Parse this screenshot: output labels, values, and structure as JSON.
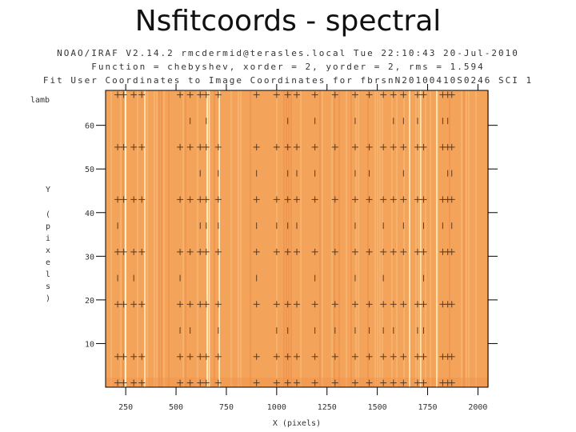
{
  "slide_title": "Nsfitcoords - spectral",
  "plot_header": [
    "NOAO/IRAF V2.14.2 rmcdermid@terasles.local  Tue 22:10:43 20-Jul-2010",
    "Function = chebyshev, xorder = 2, yorder = 2, rms = 1.594",
    "Fit User Coordinates to Image Coordinates for fbrsnN20100410S0246 SCI 1"
  ],
  "chart_data": {
    "type": "scatter",
    "xlabel": "X (pixels)",
    "ylabel": "Y (pixels)",
    "zlabel": "lamb",
    "xlim": [
      150,
      2050
    ],
    "ylim": [
      0,
      68
    ],
    "xticks": [
      250,
      500,
      750,
      1000,
      1250,
      1500,
      1750,
      2000
    ],
    "yticks": [
      10,
      20,
      30,
      40,
      50,
      60
    ],
    "rows_y": [
      1,
      7,
      13,
      19,
      25,
      31,
      37,
      43,
      49,
      55,
      61,
      67
    ],
    "line_x": [
      210,
      240,
      290,
      330,
      520,
      570,
      620,
      650,
      710,
      900,
      1000,
      1055,
      1100,
      1190,
      1290,
      1390,
      1460,
      1530,
      1580,
      1630,
      1700,
      1730,
      1825,
      1850,
      1870
    ],
    "emission_lines_x": [
      248,
      250,
      345,
      655,
      665,
      715,
      1660,
      1715,
      1795
    ],
    "colors": {
      "background": "#f4a35a",
      "stripe_light": "#f7c07d",
      "stripe_dark": "#ec8d47",
      "line": "#fff6cf",
      "marker": "#5a3a1e"
    }
  }
}
